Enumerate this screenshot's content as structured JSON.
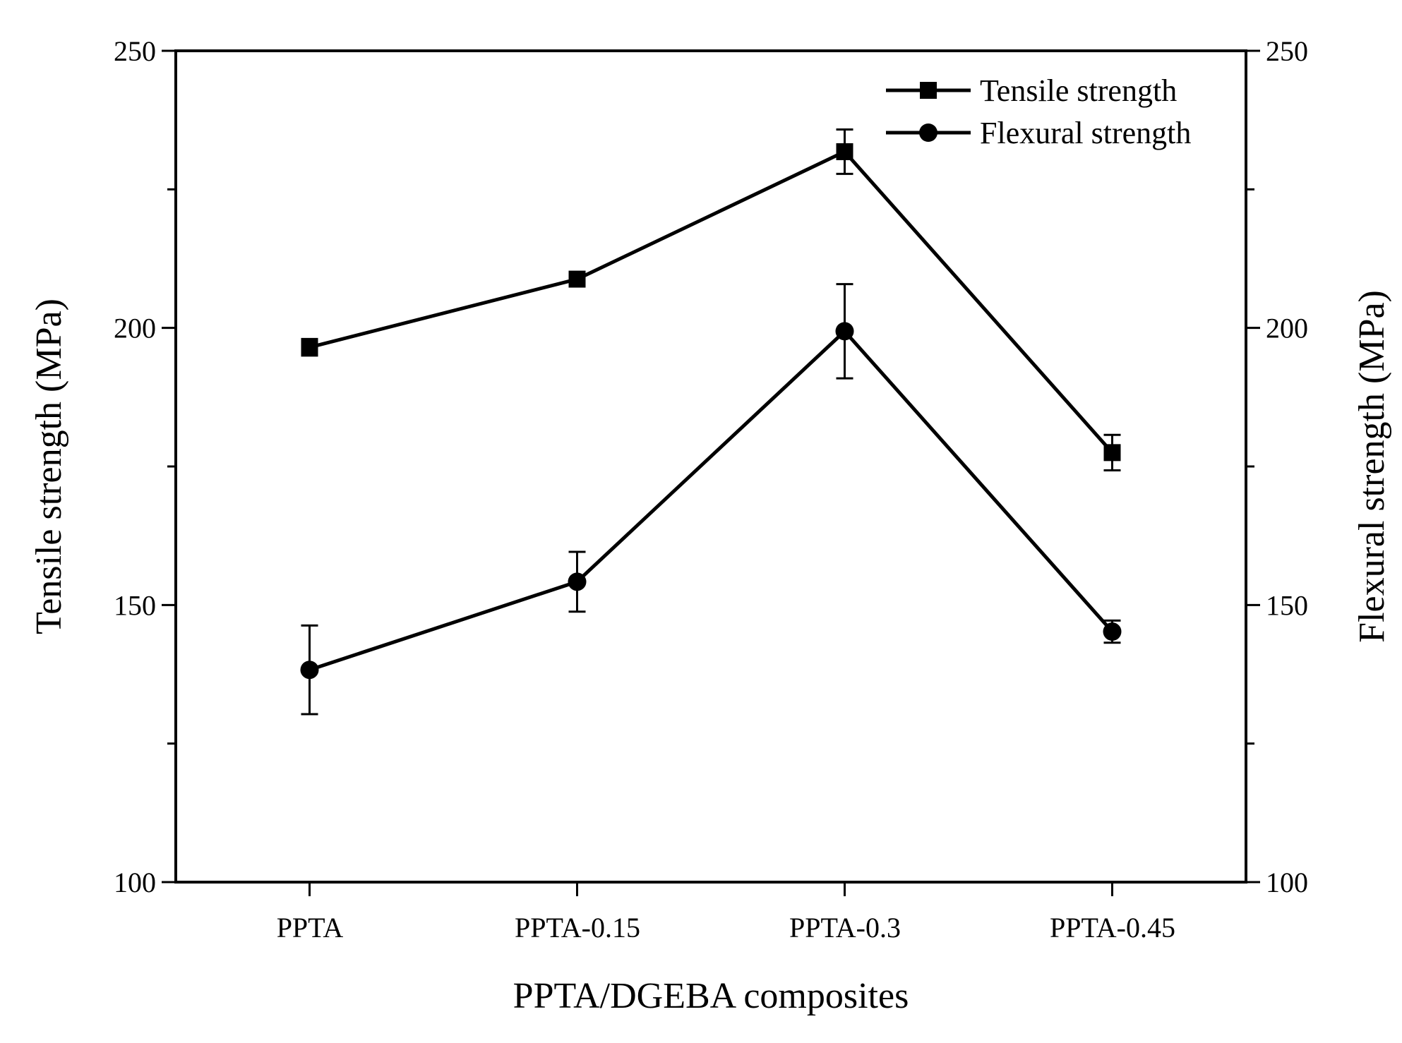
{
  "chart_data": {
    "type": "line",
    "categories": [
      "PPTA",
      "PPTA-0.15",
      "PPTA-0.3",
      "PPTA-0.45"
    ],
    "series": [
      {
        "name": "Tensile strength",
        "marker": "square",
        "axis": "left",
        "values": [
          196.5,
          208.8,
          231.8,
          177.5
        ],
        "errors": [
          1.5,
          1.0,
          4.0,
          3.2
        ]
      },
      {
        "name": "Flexural strength",
        "marker": "circle",
        "axis": "right",
        "values": [
          138.3,
          154.2,
          199.4,
          145.2
        ],
        "errors": [
          8.0,
          5.4,
          8.5,
          2.0
        ]
      }
    ],
    "xlabel": "PPTA/DGEBA composites",
    "ylabel_left": "Tensile strength (MPa)",
    "ylabel_right": "Flexural strength (MPa)",
    "ylim": [
      100,
      250
    ],
    "y_ticks": [
      "100",
      "150",
      "200",
      "250"
    ],
    "grid": false,
    "legend_position": "top-right",
    "color": "#000000"
  }
}
